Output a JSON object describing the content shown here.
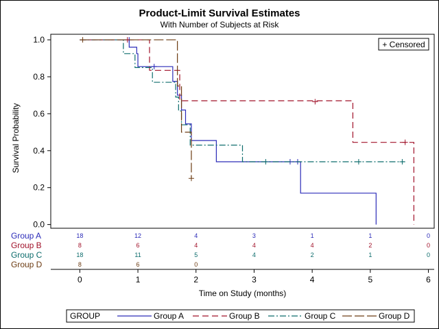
{
  "chart_data": {
    "type": "line",
    "title": "Product-Limit Survival Estimates",
    "subtitle": "With Number of Subjects at Risk",
    "xlabel": "Time on Study (months)",
    "ylabel": "Survival Probability",
    "xlim": [
      -0.5,
      6.1
    ],
    "ylim": [
      -0.02,
      1.03
    ],
    "xticks": [
      0,
      1,
      2,
      3,
      4,
      5,
      6
    ],
    "yticks": [
      0.0,
      0.2,
      0.4,
      0.6,
      0.8,
      1.0
    ],
    "ytick_labels": [
      "0.0",
      "0.2",
      "0.4",
      "0.6",
      "0.8",
      "1.0"
    ],
    "censored_legend": "+ Censored",
    "legend_title": "GROUP",
    "series": [
      {
        "name": "Group A",
        "color": "#2a2ab8",
        "dash": "",
        "steps": [
          [
            0,
            1.0
          ],
          [
            0.85,
            0.96
          ],
          [
            0.98,
            0.925
          ],
          [
            1.0,
            0.855
          ],
          [
            1.6,
            0.775
          ],
          [
            1.68,
            0.7
          ],
          [
            1.75,
            0.62
          ],
          [
            1.82,
            0.545
          ],
          [
            1.92,
            0.455
          ],
          [
            2.35,
            0.34
          ],
          [
            3.8,
            0.17
          ],
          [
            5.1,
            0.0
          ]
        ],
        "end_x": 5.1,
        "censored": [
          [
            0.85,
            1.0
          ],
          [
            1.28,
            0.855
          ],
          [
            3.62,
            0.34
          ],
          [
            3.75,
            0.34
          ]
        ],
        "at_risk_times": [
          0,
          1,
          2,
          3,
          4,
          5,
          6
        ],
        "at_risk": [
          "18",
          "12",
          "4",
          "3",
          "1",
          "1",
          "0"
        ]
      },
      {
        "name": "Group B",
        "color": "#a01028",
        "dash": "9,5",
        "steps": [
          [
            0,
            1.0
          ],
          [
            1.2,
            0.835
          ],
          [
            1.72,
            0.67
          ],
          [
            4.7,
            0.445
          ],
          [
            5.75,
            0.0
          ]
        ],
        "end_x": 5.75,
        "censored": [
          [
            0.82,
            1.0
          ],
          [
            4.05,
            0.665
          ],
          [
            5.6,
            0.445
          ]
        ],
        "at_risk_times": [
          0,
          1,
          2,
          3,
          4,
          5,
          6
        ],
        "at_risk": [
          "8",
          "6",
          "4",
          "4",
          "4",
          "2",
          "0"
        ]
      },
      {
        "name": "Group C",
        "color": "#0b6b6b",
        "dash": "9,3,2,3",
        "steps": [
          [
            0,
            1.0
          ],
          [
            0.75,
            0.925
          ],
          [
            0.95,
            0.85
          ],
          [
            1.25,
            0.77
          ],
          [
            1.65,
            0.69
          ],
          [
            1.7,
            0.615
          ],
          [
            1.75,
            0.54
          ],
          [
            1.9,
            0.43
          ],
          [
            2.8,
            0.34
          ],
          [
            5.6,
            0.34
          ]
        ],
        "end_x": 5.6,
        "censored": [
          [
            3.2,
            0.34
          ],
          [
            4.8,
            0.34
          ],
          [
            5.55,
            0.34
          ]
        ],
        "at_risk_times": [
          0,
          1,
          2,
          3,
          4,
          5,
          6
        ],
        "at_risk": [
          "18",
          "11",
          "5",
          "4",
          "2",
          "1",
          "0"
        ]
      },
      {
        "name": "Group D",
        "color": "#6b3a10",
        "dash": "14,4",
        "steps": [
          [
            0,
            1.0
          ],
          [
            1.68,
            0.75
          ],
          [
            1.75,
            0.5
          ],
          [
            1.92,
            0.25
          ]
        ],
        "end_x": 1.92,
        "censored": [
          [
            0.05,
            1.0
          ],
          [
            1.92,
            0.25
          ]
        ],
        "at_risk_times": [
          0,
          1,
          2
        ],
        "at_risk": [
          "8",
          "6",
          "0"
        ]
      }
    ]
  }
}
